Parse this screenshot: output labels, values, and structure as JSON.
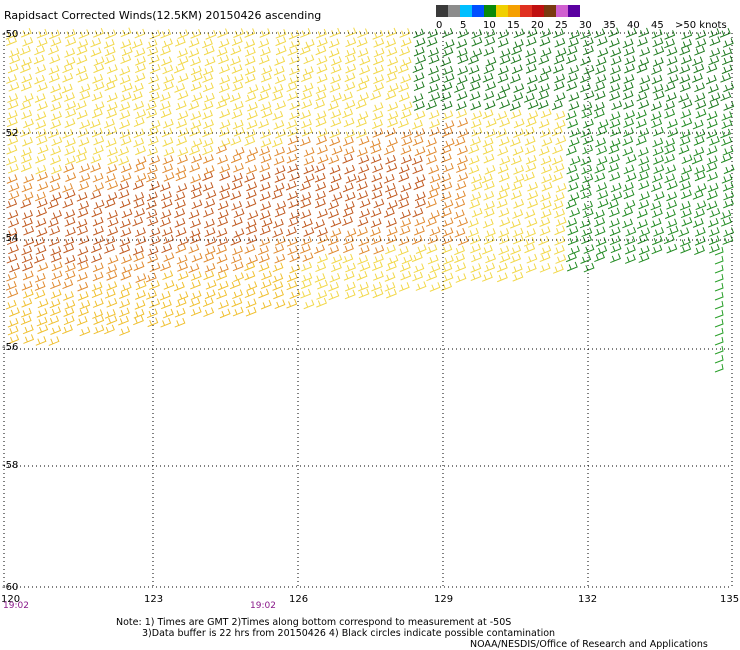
{
  "title": "Rapidsact Corrected Winds(12.5KM) 20150426 ascending",
  "legend": {
    "labels": [
      "0",
      "5",
      "10",
      "15",
      "20",
      "25",
      "30",
      "35",
      "40",
      "45",
      ">50 knots"
    ],
    "colors": [
      "#3a3a3a",
      "#8c8c8c",
      "#00bfff",
      "#0050ff",
      "#0a8a0a",
      "#f0d000",
      "#f5a000",
      "#e03020",
      "#c01010",
      "#7a3a10",
      "#d060d0",
      "#5a00a0"
    ]
  },
  "axes": {
    "lat_labels": [
      "-50",
      "-52",
      "-54",
      "-56",
      "-58",
      "-60"
    ],
    "lon_labels": [
      "120",
      "123",
      "126",
      "129",
      "132",
      "135"
    ]
  },
  "times": [
    "19:02",
    "19:02"
  ],
  "notes": {
    "line1": "Note: 1) Times are GMT 2)Times along bottom correspond to measurement at -50S",
    "line2": "3)Data buffer is 22 hrs from 20150426 4) Black circles indicate possible contamination",
    "credit": "NOAA/NESDIS/Office of Research and Applications"
  }
}
